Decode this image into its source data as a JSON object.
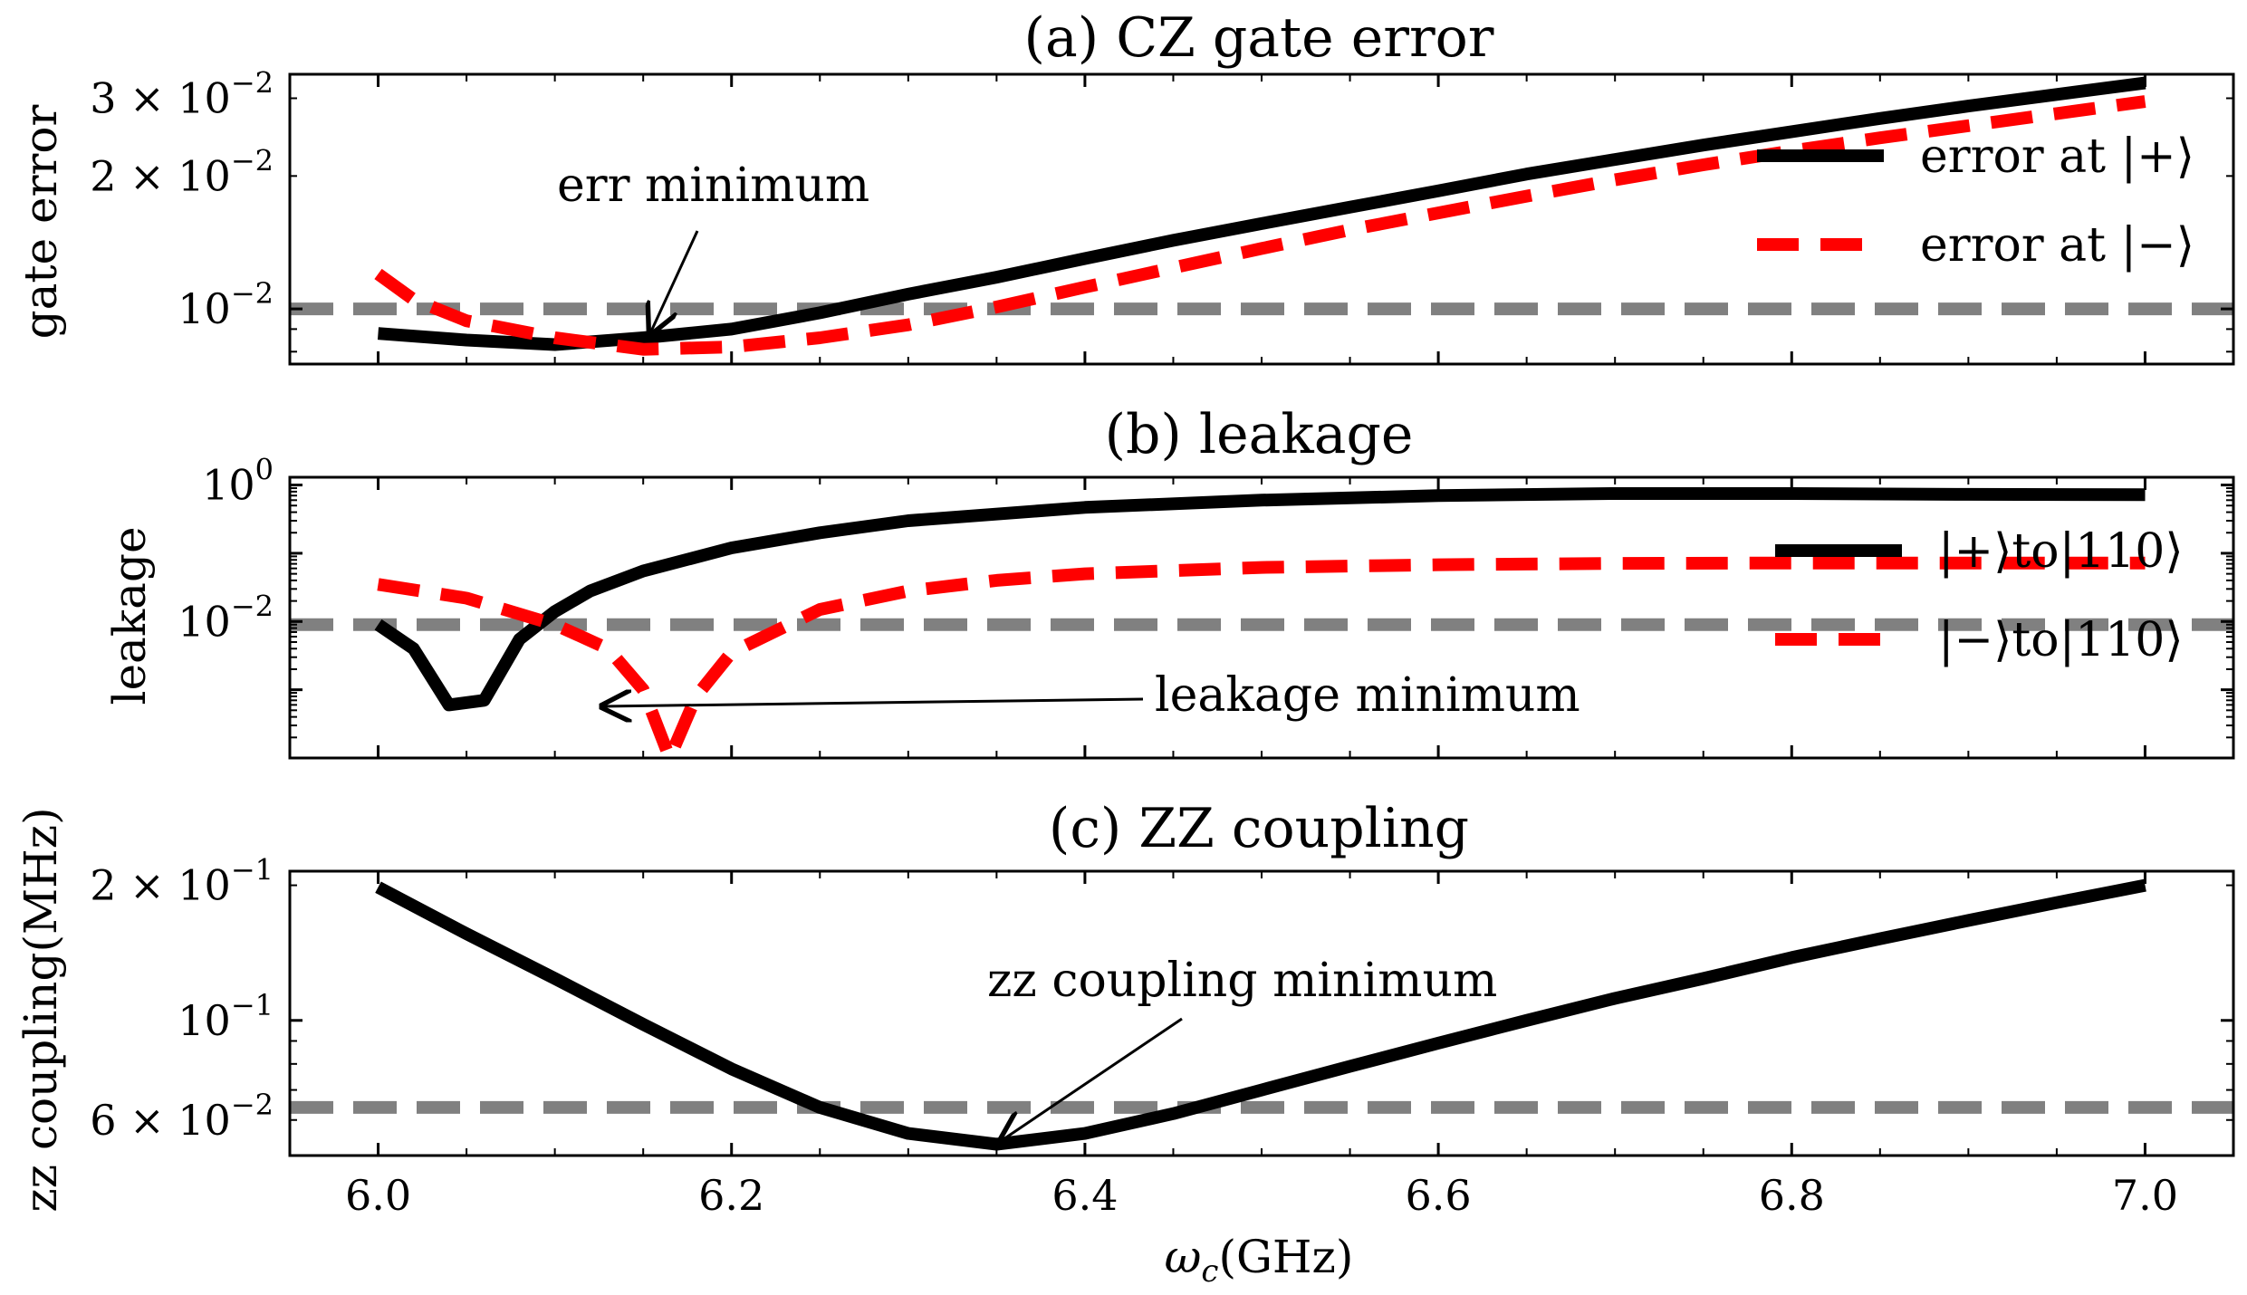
{
  "chart_data": [
    {
      "type": "line",
      "title": "(a) CZ gate error",
      "ylabel": "gate error",
      "xlim": [
        5.95,
        7.05
      ],
      "ylim": [
        0.0075,
        0.034
      ],
      "yscale": "log",
      "x_ticks": [
        6.0,
        6.2,
        6.4,
        6.6,
        6.8,
        7.0
      ],
      "y_ticks": [
        {
          "value": 0.01,
          "mant": "",
          "exp": "−2"
        },
        {
          "value": 0.02,
          "mant": "2 × ",
          "exp": "−2"
        },
        {
          "value": 0.03,
          "mant": "3 × ",
          "exp": "−2"
        }
      ],
      "threshold": 0.01,
      "legend_position": "right",
      "series": [
        {
          "name": "error at |+⟩",
          "color": "#000000",
          "style": "solid",
          "x": [
            6.0,
            6.05,
            6.1,
            6.15,
            6.2,
            6.25,
            6.3,
            6.35,
            6.4,
            6.45,
            6.5,
            6.55,
            6.6,
            6.65,
            6.7,
            6.75,
            6.8,
            6.85,
            6.9,
            6.95,
            7.0
          ],
          "y": [
            0.0088,
            0.0085,
            0.0083,
            0.0086,
            0.009,
            0.0098,
            0.0108,
            0.0118,
            0.013,
            0.0143,
            0.0156,
            0.017,
            0.0185,
            0.0202,
            0.0218,
            0.0235,
            0.0252,
            0.027,
            0.0288,
            0.0306,
            0.0325
          ]
        },
        {
          "name": "error at |−⟩",
          "color": "#ff0000",
          "style": "dashed",
          "x": [
            6.0,
            6.02,
            6.05,
            6.1,
            6.15,
            6.2,
            6.25,
            6.3,
            6.35,
            6.4,
            6.45,
            6.5,
            6.55,
            6.6,
            6.65,
            6.7,
            6.75,
            6.8,
            6.85,
            6.9,
            6.95,
            7.0
          ],
          "y": [
            0.012,
            0.0105,
            0.0094,
            0.0086,
            0.0081,
            0.0082,
            0.0086,
            0.0092,
            0.0101,
            0.0112,
            0.0124,
            0.0137,
            0.0151,
            0.0165,
            0.018,
            0.0196,
            0.0212,
            0.0228,
            0.0244,
            0.026,
            0.0277,
            0.0295
          ]
        }
      ],
      "annotation": {
        "text": "err minimum",
        "x": 6.15,
        "y": 0.0087
      }
    },
    {
      "type": "line",
      "title": "(b) leakage",
      "ylabel": "leakage",
      "xlim": [
        5.95,
        7.05
      ],
      "ylim": [
        0.0001,
        1.3
      ],
      "yscale": "log",
      "x_ticks": [
        6.0,
        6.2,
        6.4,
        6.6,
        6.8,
        7.0
      ],
      "y_ticks": [
        {
          "value": 0.01,
          "mant": "",
          "exp": "−2"
        },
        {
          "value": 1,
          "mant": "",
          "exp": "0"
        }
      ],
      "threshold": 0.009,
      "legend_position": "right",
      "series": [
        {
          "name": "|+⟩to|110⟩",
          "color": "#000000",
          "style": "solid",
          "x": [
            6.0,
            6.02,
            6.04,
            6.06,
            6.08,
            6.1,
            6.12,
            6.15,
            6.2,
            6.25,
            6.3,
            6.4,
            6.5,
            6.6,
            6.7,
            6.8,
            6.9,
            7.0
          ],
          "y": [
            0.009,
            0.004,
            0.0006,
            0.0007,
            0.0055,
            0.014,
            0.028,
            0.055,
            0.12,
            0.2,
            0.3,
            0.47,
            0.6,
            0.7,
            0.75,
            0.75,
            0.73,
            0.72
          ]
        },
        {
          "name": "|−⟩to|110⟩",
          "color": "#ff0000",
          "style": "dashed",
          "x": [
            6.0,
            6.05,
            6.1,
            6.13,
            6.15,
            6.165,
            6.18,
            6.2,
            6.25,
            6.3,
            6.35,
            6.4,
            6.5,
            6.6,
            6.7,
            6.8,
            6.9,
            7.0
          ],
          "y": [
            0.035,
            0.022,
            0.009,
            0.004,
            0.001,
            0.0001,
            0.0008,
            0.0035,
            0.015,
            0.028,
            0.04,
            0.05,
            0.062,
            0.068,
            0.071,
            0.072,
            0.072,
            0.072
          ]
        }
      ],
      "annotation": {
        "text": "leakage minimum",
        "x": 6.13,
        "y": 0.0007
      }
    },
    {
      "type": "line",
      "title": "(c) ZZ coupling",
      "xlabel": "ω_c(GHz)",
      "ylabel": "zz coupling(MHz)",
      "xlim": [
        5.95,
        7.05
      ],
      "ylim": [
        0.05,
        0.215
      ],
      "yscale": "log",
      "x_ticks": [
        6.0,
        6.2,
        6.4,
        6.6,
        6.8,
        7.0
      ],
      "y_ticks": [
        {
          "value": 0.06,
          "mant": "6 × ",
          "exp": "−2"
        },
        {
          "value": 0.1,
          "mant": "",
          "exp": "−1"
        },
        {
          "value": 0.2,
          "mant": "2 × ",
          "exp": "−1"
        }
      ],
      "threshold": 0.064,
      "series": [
        {
          "name": "",
          "color": "#000000",
          "style": "solid",
          "x": [
            6.0,
            6.05,
            6.1,
            6.15,
            6.2,
            6.25,
            6.3,
            6.35,
            6.4,
            6.45,
            6.5,
            6.55,
            6.6,
            6.65,
            6.7,
            6.75,
            6.8,
            6.85,
            6.9,
            6.95,
            7.0
          ],
          "y": [
            0.198,
            0.156,
            0.124,
            0.098,
            0.078,
            0.064,
            0.056,
            0.053,
            0.056,
            0.062,
            0.07,
            0.079,
            0.089,
            0.1,
            0.112,
            0.124,
            0.138,
            0.152,
            0.167,
            0.183,
            0.2
          ]
        }
      ],
      "annotation": {
        "text": "zz coupling minimum",
        "x": 6.355,
        "y": 0.0535
      }
    }
  ]
}
